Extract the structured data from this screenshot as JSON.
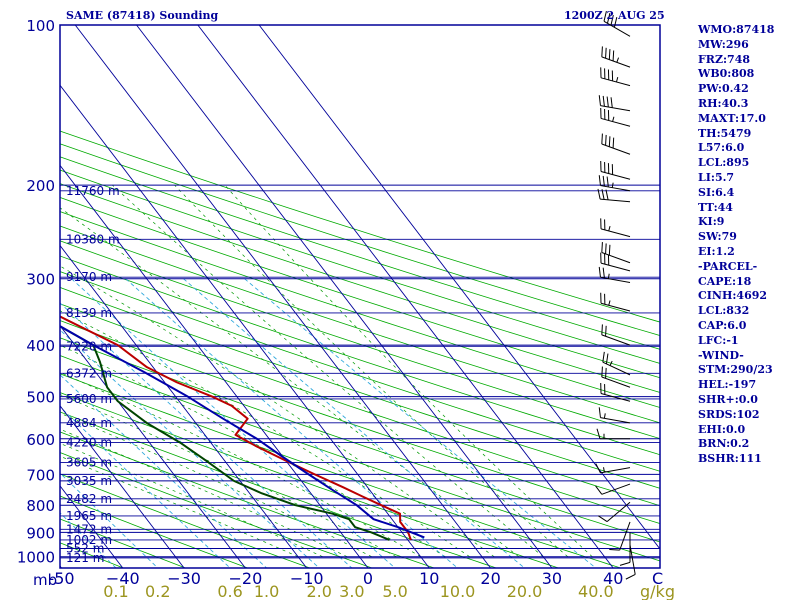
{
  "header": {
    "station": "SAME (87418) Sounding",
    "valid_time": "1200Z  2 AUG 25"
  },
  "indices": [
    "WMO:87418",
    "MW:296",
    "FRZ:748",
    "WB0:808",
    "PW:0.42",
    "RH:40.3",
    "MAXT:17.0",
    "TH:5479",
    "L57:6.0",
    "LCL:895",
    "LI:5.7",
    "SI:6.4",
    "TT:44",
    "KI:9",
    "SW:79",
    "EI:1.2",
    "-PARCEL-",
    "CAPE:18",
    "CINH:4692",
    "LCL:832",
    "CAP:6.0",
    "LFC:-1",
    "-WIND-",
    "STM:290/23",
    "HEL:-197",
    "SHR+:0.0",
    "SRDS:102",
    "EHI:0.0",
    "BRN:0.2",
    "BSHR:111"
  ],
  "chart_data": {
    "type": "line",
    "diagram": "skew-T log-P",
    "x_unit_label": "C",
    "pressure_unit_label": "mb",
    "mixing_ratio_unit_label": "g/kg",
    "pressure_ticks": [
      {
        "p": 100,
        "label": "100"
      },
      {
        "p": 200,
        "label": "200"
      },
      {
        "p": 300,
        "label": "300"
      },
      {
        "p": 400,
        "label": "400"
      },
      {
        "p": 500,
        "label": "500"
      },
      {
        "p": 600,
        "label": "600"
      },
      {
        "p": 700,
        "label": "700"
      },
      {
        "p": 800,
        "label": "800"
      },
      {
        "p": 900,
        "label": "900"
      },
      {
        "p": 1000,
        "label": "1000"
      }
    ],
    "temperature_ticks": [
      {
        "t": -50,
        "label": "-50"
      },
      {
        "t": -40,
        "label": "−40"
      },
      {
        "t": -30,
        "label": "−30"
      },
      {
        "t": -20,
        "label": "−20"
      },
      {
        "t": -10,
        "label": "−10"
      },
      {
        "t": 0,
        "label": "0"
      },
      {
        "t": 10,
        "label": "10"
      },
      {
        "t": 20,
        "label": "20"
      },
      {
        "t": 30,
        "label": "30"
      },
      {
        "t": 40,
        "label": "40"
      }
    ],
    "mixing_ratio_ticks": [
      {
        "w": 0.1,
        "label": "0.1"
      },
      {
        "w": 0.2,
        "label": "0.2"
      },
      {
        "w": 0.6,
        "label": "0.6"
      },
      {
        "w": 1.0,
        "label": "1.0"
      },
      {
        "w": 2.0,
        "label": "2.0"
      },
      {
        "w": 3.0,
        "label": "3.0"
      },
      {
        "w": 5.0,
        "label": "5.0"
      },
      {
        "w": 10.0,
        "label": "10.0"
      },
      {
        "w": 20.0,
        "label": "20.0"
      },
      {
        "w": 40.0,
        "label": "40.0"
      }
    ],
    "height_levels": [
      {
        "p": 205,
        "label": "11760 m"
      },
      {
        "p": 253,
        "label": "10380 m"
      },
      {
        "p": 298,
        "label": "9170 m"
      },
      {
        "p": 348,
        "label": "8139 m"
      },
      {
        "p": 402,
        "label": "7220 m"
      },
      {
        "p": 452,
        "label": "6372 m"
      },
      {
        "p": 505,
        "label": "5600 m"
      },
      {
        "p": 560,
        "label": "4884 m"
      },
      {
        "p": 610,
        "label": "4220 m"
      },
      {
        "p": 665,
        "label": "3605 m"
      },
      {
        "p": 720,
        "label": "3035 m"
      },
      {
        "p": 778,
        "label": "2482 m"
      },
      {
        "p": 838,
        "label": "1965 m"
      },
      {
        "p": 888,
        "label": "1472 m"
      },
      {
        "p": 930,
        "label": "1002 m"
      },
      {
        "p": 965,
        "label": "552 m"
      },
      {
        "p": 1005,
        "label": "121 m"
      }
    ],
    "series": [
      {
        "name": "Temperature",
        "color": "#bb0000",
        "points": [
          [
            930,
            10.5
          ],
          [
            900,
            11
          ],
          [
            860,
            11
          ],
          [
            830,
            12
          ],
          [
            800,
            10
          ],
          [
            770,
            8
          ],
          [
            740,
            6
          ],
          [
            700,
            3
          ],
          [
            660,
            0
          ],
          [
            620,
            -3
          ],
          [
            590,
            -5
          ],
          [
            550,
            -1
          ],
          [
            520,
            -2
          ],
          [
            500,
            -4
          ],
          [
            470,
            -8
          ],
          [
            440,
            -11
          ],
          [
            400,
            -13
          ],
          [
            360,
            -18
          ],
          [
            330,
            -22
          ],
          [
            300,
            -25
          ],
          [
            290,
            -26
          ],
          [
            270,
            -22
          ],
          [
            250,
            -17
          ],
          [
            225,
            -17
          ],
          [
            200,
            -20
          ],
          [
            180,
            -20
          ],
          [
            160,
            -17
          ],
          [
            152,
            -15
          ],
          [
            150,
            -15
          ],
          [
            140,
            -16
          ],
          [
            130,
            -14
          ],
          [
            127,
            -12
          ]
        ]
      },
      {
        "name": "Dewpoint",
        "color": "#004400",
        "points": [
          [
            930,
            7
          ],
          [
            900,
            5
          ],
          [
            880,
            3
          ],
          [
            850,
            3
          ],
          [
            830,
            1
          ],
          [
            800,
            -4
          ],
          [
            760,
            -8
          ],
          [
            720,
            -11
          ],
          [
            660,
            -13
          ],
          [
            610,
            -15
          ],
          [
            560,
            -18
          ],
          [
            510,
            -20
          ],
          [
            480,
            -20
          ],
          [
            430,
            -18
          ],
          [
            400,
            -17
          ],
          [
            360,
            -21
          ],
          [
            330,
            -23
          ],
          [
            300,
            -23
          ],
          [
            280,
            -37
          ],
          [
            270,
            -58
          ],
          [
            255,
            -58
          ],
          [
            240,
            -55
          ],
          [
            220,
            -54
          ],
          [
            200,
            -52
          ],
          [
            180,
            -53
          ],
          [
            160,
            -54
          ],
          [
            150,
            -55
          ],
          [
            140,
            -56
          ],
          [
            130,
            -57
          ],
          [
            128,
            -56
          ]
        ]
      },
      {
        "name": "Parcel",
        "color": "#0000aa",
        "points": [
          [
            920,
            13
          ],
          [
            880,
            10
          ],
          [
            850,
            7
          ],
          [
            800,
            6
          ],
          [
            750,
            4
          ],
          [
            700,
            2
          ],
          [
            650,
            0
          ],
          [
            600,
            -2
          ],
          [
            550,
            -5
          ],
          [
            500,
            -8
          ],
          [
            450,
            -12
          ],
          [
            400,
            -17
          ],
          [
            350,
            -22
          ],
          [
            300,
            -27
          ],
          [
            250,
            -34
          ],
          [
            200,
            -42
          ],
          [
            150,
            -53
          ],
          [
            100,
            -68
          ]
        ]
      }
    ],
    "wind_barbs": [
      {
        "p": 105,
        "dir": 300,
        "spd": 40
      },
      {
        "p": 120,
        "dir": 290,
        "spd": 45
      },
      {
        "p": 130,
        "dir": 285,
        "spd": 45
      },
      {
        "p": 145,
        "dir": 280,
        "spd": 40
      },
      {
        "p": 155,
        "dir": 285,
        "spd": 35
      },
      {
        "p": 175,
        "dir": 290,
        "spd": 40
      },
      {
        "p": 195,
        "dir": 285,
        "spd": 40
      },
      {
        "p": 205,
        "dir": 280,
        "spd": 35
      },
      {
        "p": 215,
        "dir": 275,
        "spd": 30
      },
      {
        "p": 250,
        "dir": 285,
        "spd": 25
      },
      {
        "p": 280,
        "dir": 290,
        "spd": 30
      },
      {
        "p": 290,
        "dir": 285,
        "spd": 30
      },
      {
        "p": 305,
        "dir": 280,
        "spd": 25
      },
      {
        "p": 345,
        "dir": 285,
        "spd": 25
      },
      {
        "p": 400,
        "dir": 290,
        "spd": 20
      },
      {
        "p": 455,
        "dir": 295,
        "spd": 25
      },
      {
        "p": 480,
        "dir": 290,
        "spd": 20
      },
      {
        "p": 510,
        "dir": 285,
        "spd": 20
      },
      {
        "p": 560,
        "dir": 280,
        "spd": 15
      },
      {
        "p": 600,
        "dir": 270,
        "spd": 15
      },
      {
        "p": 680,
        "dir": 260,
        "spd": 15
      },
      {
        "p": 730,
        "dir": 250,
        "spd": 10
      },
      {
        "p": 790,
        "dir": 230,
        "spd": 10
      },
      {
        "p": 860,
        "dir": 200,
        "spd": 10
      },
      {
        "p": 900,
        "dir": 180,
        "spd": 10
      },
      {
        "p": 950,
        "dir": 170,
        "spd": 10
      }
    ]
  }
}
